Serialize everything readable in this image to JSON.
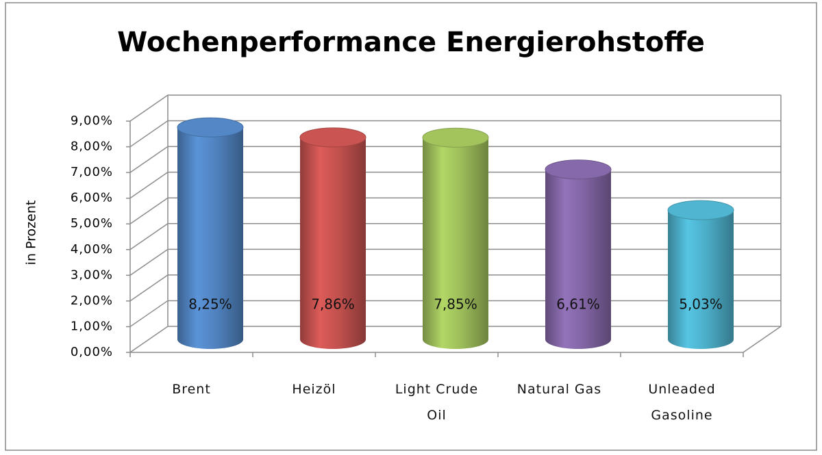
{
  "chart_data": {
    "type": "bar3d",
    "title": "Wochenperformance Energierohstoffe",
    "ylabel": "in Prozent",
    "categories": [
      "Brent",
      "Heizöl",
      "Light Crude Oil",
      "Natural Gas",
      "Unleaded Gasoline"
    ],
    "values": [
      8.25,
      7.86,
      7.85,
      6.61,
      5.03
    ],
    "value_labels": [
      "8,25%",
      "7,86%",
      "7,85%",
      "6,61%",
      "5,03%"
    ],
    "colors": [
      "#4f81bd",
      "#c0504d",
      "#9bbb59",
      "#8064a2",
      "#4bacc6"
    ],
    "ylim": [
      0,
      9
    ],
    "yticks": [
      {
        "value": 0,
        "label": "0,00%"
      },
      {
        "value": 1,
        "label": "1,00%"
      },
      {
        "value": 2,
        "label": "2,00%"
      },
      {
        "value": 3,
        "label": "3,00%"
      },
      {
        "value": 4,
        "label": "4,00%"
      },
      {
        "value": 5,
        "label": "5,00%"
      },
      {
        "value": 6,
        "label": "6,00%"
      },
      {
        "value": 7,
        "label": "7,00%"
      },
      {
        "value": 8,
        "label": "8,00%"
      },
      {
        "value": 9,
        "label": "9,00%"
      }
    ],
    "grid": true
  }
}
